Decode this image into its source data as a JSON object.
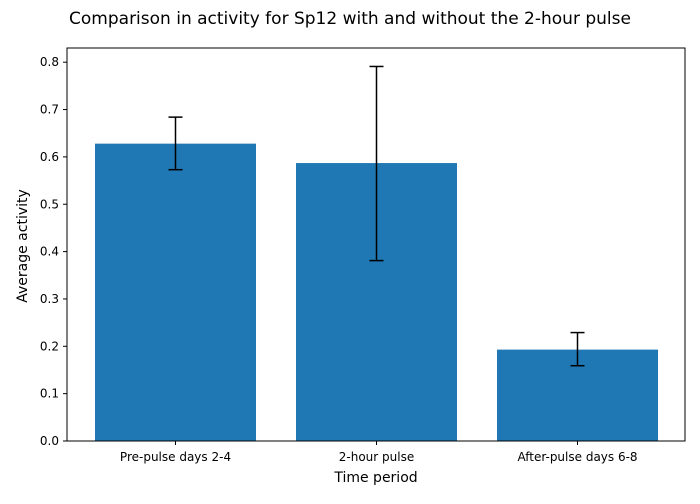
{
  "chart_data": {
    "type": "bar",
    "title": "Comparison in activity for Sp12 with and without the 2-hour pulse",
    "xlabel": "Time period",
    "ylabel": "Average activity",
    "categories": [
      "Pre-pulse days 2-4",
      "2-hour pulse",
      "After-pulse days 6-8"
    ],
    "values": [
      0.628,
      0.587,
      0.193
    ],
    "error_low": [
      0.573,
      0.381,
      0.159
    ],
    "error_high": [
      0.684,
      0.791,
      0.229
    ],
    "ylim": [
      0,
      0.83
    ],
    "yticks": [
      "0.0",
      "0.1",
      "0.2",
      "0.3",
      "0.4",
      "0.5",
      "0.6",
      "0.7",
      "0.8"
    ],
    "grid": false,
    "legend": "none",
    "bar_color": "#1f77b4",
    "error_bar_color": "#000000"
  }
}
